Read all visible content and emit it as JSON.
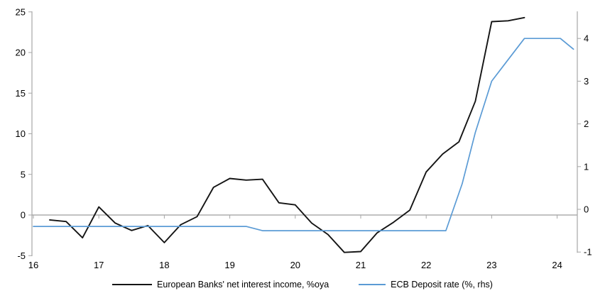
{
  "chart_data": {
    "type": "line",
    "title": "",
    "x_axis": {
      "ticks": [
        16,
        17,
        18,
        19,
        20,
        21,
        22,
        23,
        24
      ],
      "range": [
        16,
        24.31
      ]
    },
    "left_axis": {
      "label": "",
      "ticks": [
        -5,
        0,
        5,
        10,
        15,
        20,
        25
      ],
      "range": [
        -5,
        25
      ]
    },
    "right_axis": {
      "label": "",
      "ticks": [
        -1,
        0,
        1,
        2,
        3,
        4
      ],
      "range": [
        -1,
        4.6
      ]
    },
    "grid": "zero-line-only",
    "legend_position": "bottom",
    "series": [
      {
        "name": "European Banks' net interest income, %oya",
        "axis": "left",
        "color": "#141414",
        "points": [
          [
            16.25,
            -0.6
          ],
          [
            16.5,
            -0.8
          ],
          [
            16.75,
            -2.8
          ],
          [
            17.0,
            1.0
          ],
          [
            17.25,
            -1.0
          ],
          [
            17.5,
            -1.9
          ],
          [
            17.75,
            -1.3
          ],
          [
            18.0,
            -3.4
          ],
          [
            18.25,
            -1.2
          ],
          [
            18.5,
            -0.2
          ],
          [
            18.75,
            3.4
          ],
          [
            19.0,
            4.5
          ],
          [
            19.25,
            4.3
          ],
          [
            19.5,
            4.4
          ],
          [
            19.75,
            1.5
          ],
          [
            20.0,
            1.25
          ],
          [
            20.25,
            -1.0
          ],
          [
            20.5,
            -2.4
          ],
          [
            20.75,
            -4.6
          ],
          [
            21.0,
            -4.5
          ],
          [
            21.25,
            -2.2
          ],
          [
            21.5,
            -0.9
          ],
          [
            21.75,
            0.6
          ],
          [
            22.0,
            5.3
          ],
          [
            22.25,
            7.5
          ],
          [
            22.5,
            9.0
          ],
          [
            22.75,
            14.0
          ],
          [
            23.0,
            23.8
          ],
          [
            23.25,
            23.9
          ],
          [
            23.5,
            24.3
          ]
        ]
      },
      {
        "name": "ECB Deposit rate (%, rhs)",
        "axis": "right",
        "color": "#5b9bd5",
        "points": [
          [
            16.0,
            -0.4
          ],
          [
            19.25,
            -0.4
          ],
          [
            19.5,
            -0.5
          ],
          [
            22.3,
            -0.5
          ],
          [
            22.55,
            0.6
          ],
          [
            22.75,
            1.8
          ],
          [
            23.0,
            3.0
          ],
          [
            23.2,
            3.4
          ],
          [
            23.5,
            4.0
          ],
          [
            24.05,
            4.0
          ],
          [
            24.25,
            3.75
          ]
        ]
      }
    ],
    "colors": {
      "axis_line": "#a6a6a6",
      "zero_line": "#9d9d9d",
      "text": "#000000"
    }
  }
}
